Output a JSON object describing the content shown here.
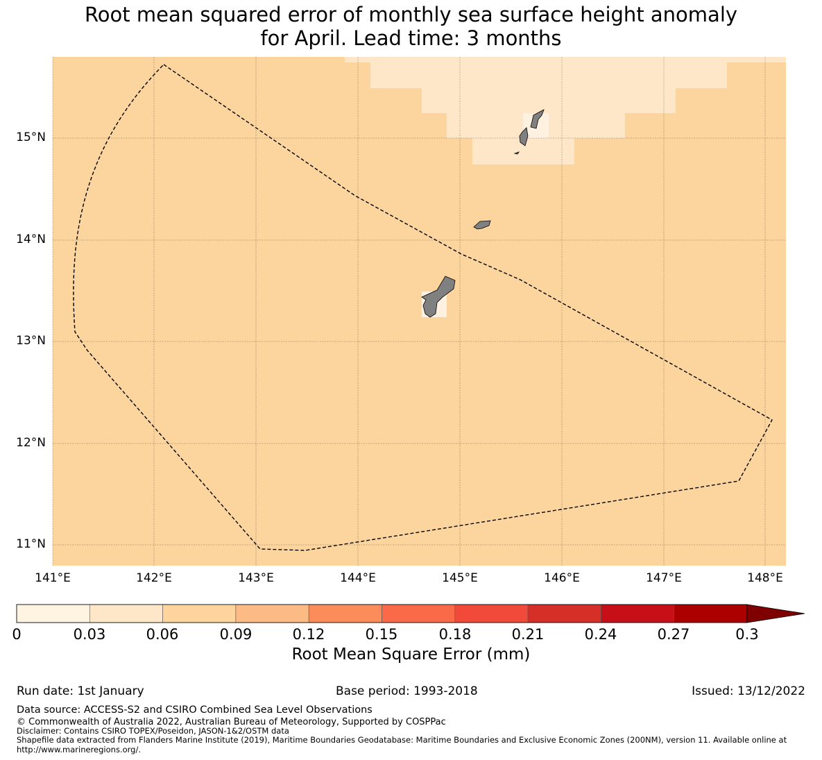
{
  "title": {
    "line1": "Root mean squared error of monthly sea surface height anomaly",
    "line2": "for April. Lead time: 3 months"
  },
  "map": {
    "lon_range": [
      141.0,
      148.2
    ],
    "lat_range": [
      10.8,
      15.8
    ],
    "lon_ticks": [
      "141°E",
      "142°E",
      "143°E",
      "144°E",
      "145°E",
      "146°E",
      "147°E",
      "148°E"
    ],
    "lat_ticks": [
      "15°N",
      "14°N",
      "13°N",
      "12°N",
      "11°N"
    ],
    "background_color": "#fcd49e",
    "light_band_color": "#fee7c8",
    "lightest_color": "#fff1e0",
    "land_color": "#808080",
    "boundary_line": "dashed EEZ boundary",
    "features": [
      "Guam",
      "Rota",
      "Tinian",
      "Saipan",
      "Aguijan"
    ]
  },
  "colorbar": {
    "ticks": [
      "0",
      "0.03",
      "0.06",
      "0.09",
      "0.12",
      "0.15",
      "0.18",
      "0.21",
      "0.24",
      "0.27",
      "0.3"
    ],
    "colors": [
      "#fff3e1",
      "#fee7c8",
      "#fdd49e",
      "#fcba85",
      "#fc8c59",
      "#fa6a49",
      "#f24a3a",
      "#d62f27",
      "#c70f18",
      "#ac0000"
    ],
    "extend_color": "#7f0000",
    "label": "Root Mean Square Error (mm)"
  },
  "footer": {
    "run_date": "Run date: 1st January",
    "base_period": "Base period: 1993-2018",
    "issued": "Issued: 13/12/2022",
    "data_source": "Data source: ACCESS-S2 and CSIRO Combined Sea Level Observations",
    "copyright": "© Commonwealth of Australia 2022, Australian Bureau of Meteorology, Supported by COSPPac",
    "disclaimer": "Disclaimer: Contains CSIRO TOPEX/Poseidon, JASON-1&2/OSTM data",
    "shapefile": "Shapefile data extracted from Flanders Marine Institute (2019), Maritime Boundaries Geodatabase: Maritime Boundaries and Exclusive Economic Zones (200NM), version 11. Available online at http://www.marineregions.org/."
  }
}
